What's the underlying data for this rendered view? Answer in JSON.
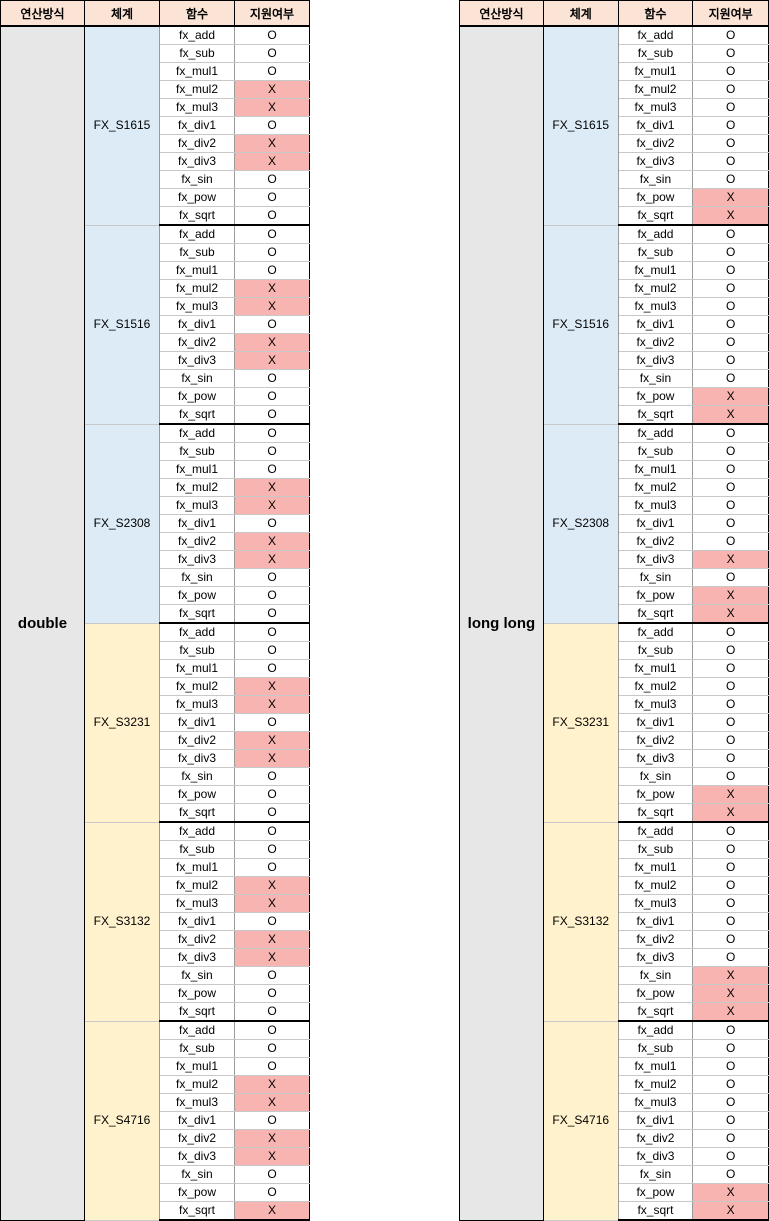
{
  "headers": [
    "연산방식",
    "체계",
    "함수",
    "지원여부"
  ],
  "functions": [
    "fx_add",
    "fx_sub",
    "fx_mul1",
    "fx_mul2",
    "fx_mul3",
    "fx_div1",
    "fx_div2",
    "fx_div3",
    "fx_sin",
    "fx_pow",
    "fx_sqrt"
  ],
  "tables": [
    {
      "op": "double",
      "groups": [
        {
          "system": "FX_S1615",
          "color": "#ddebf7",
          "support": [
            "O",
            "O",
            "O",
            "X",
            "X",
            "O",
            "X",
            "X",
            "O",
            "O",
            "O"
          ]
        },
        {
          "system": "FX_S1516",
          "color": "#ddebf7",
          "support": [
            "O",
            "O",
            "O",
            "X",
            "X",
            "O",
            "X",
            "X",
            "O",
            "O",
            "O"
          ]
        },
        {
          "system": "FX_S2308",
          "color": "#ddebf7",
          "support": [
            "O",
            "O",
            "O",
            "X",
            "X",
            "O",
            "X",
            "X",
            "O",
            "O",
            "O"
          ]
        },
        {
          "system": "FX_S3231",
          "color": "#fff2cc",
          "support": [
            "O",
            "O",
            "O",
            "X",
            "X",
            "O",
            "X",
            "X",
            "O",
            "O",
            "O"
          ]
        },
        {
          "system": "FX_S3132",
          "color": "#fff2cc",
          "support": [
            "O",
            "O",
            "O",
            "X",
            "X",
            "O",
            "X",
            "X",
            "O",
            "O",
            "O"
          ]
        },
        {
          "system": "FX_S4716",
          "color": "#fff2cc",
          "support": [
            "O",
            "O",
            "O",
            "X",
            "X",
            "O",
            "X",
            "X",
            "O",
            "O",
            "X"
          ]
        }
      ]
    },
    {
      "op": "long long",
      "groups": [
        {
          "system": "FX_S1615",
          "color": "#ddebf7",
          "support": [
            "O",
            "O",
            "O",
            "O",
            "O",
            "O",
            "O",
            "O",
            "O",
            "X",
            "X"
          ]
        },
        {
          "system": "FX_S1516",
          "color": "#ddebf7",
          "support": [
            "O",
            "O",
            "O",
            "O",
            "O",
            "O",
            "O",
            "O",
            "O",
            "X",
            "X"
          ]
        },
        {
          "system": "FX_S2308",
          "color": "#ddebf7",
          "support": [
            "O",
            "O",
            "O",
            "O",
            "O",
            "O",
            "O",
            "X",
            "O",
            "X",
            "X"
          ]
        },
        {
          "system": "FX_S3231",
          "color": "#fff2cc",
          "support": [
            "O",
            "O",
            "O",
            "O",
            "O",
            "O",
            "O",
            "O",
            "O",
            "X",
            "X"
          ]
        },
        {
          "system": "FX_S3132",
          "color": "#fff2cc",
          "support": [
            "O",
            "O",
            "O",
            "O",
            "O",
            "O",
            "O",
            "O",
            "X",
            "X",
            "X"
          ]
        },
        {
          "system": "FX_S4716",
          "color": "#fff2cc",
          "support": [
            "O",
            "O",
            "O",
            "O",
            "O",
            "O",
            "O",
            "O",
            "O",
            "X",
            "X"
          ]
        }
      ]
    }
  ],
  "colors": {
    "header": "#fbe4d5",
    "op": "#e7e7e7",
    "unsupported": "#f8b4b0"
  }
}
